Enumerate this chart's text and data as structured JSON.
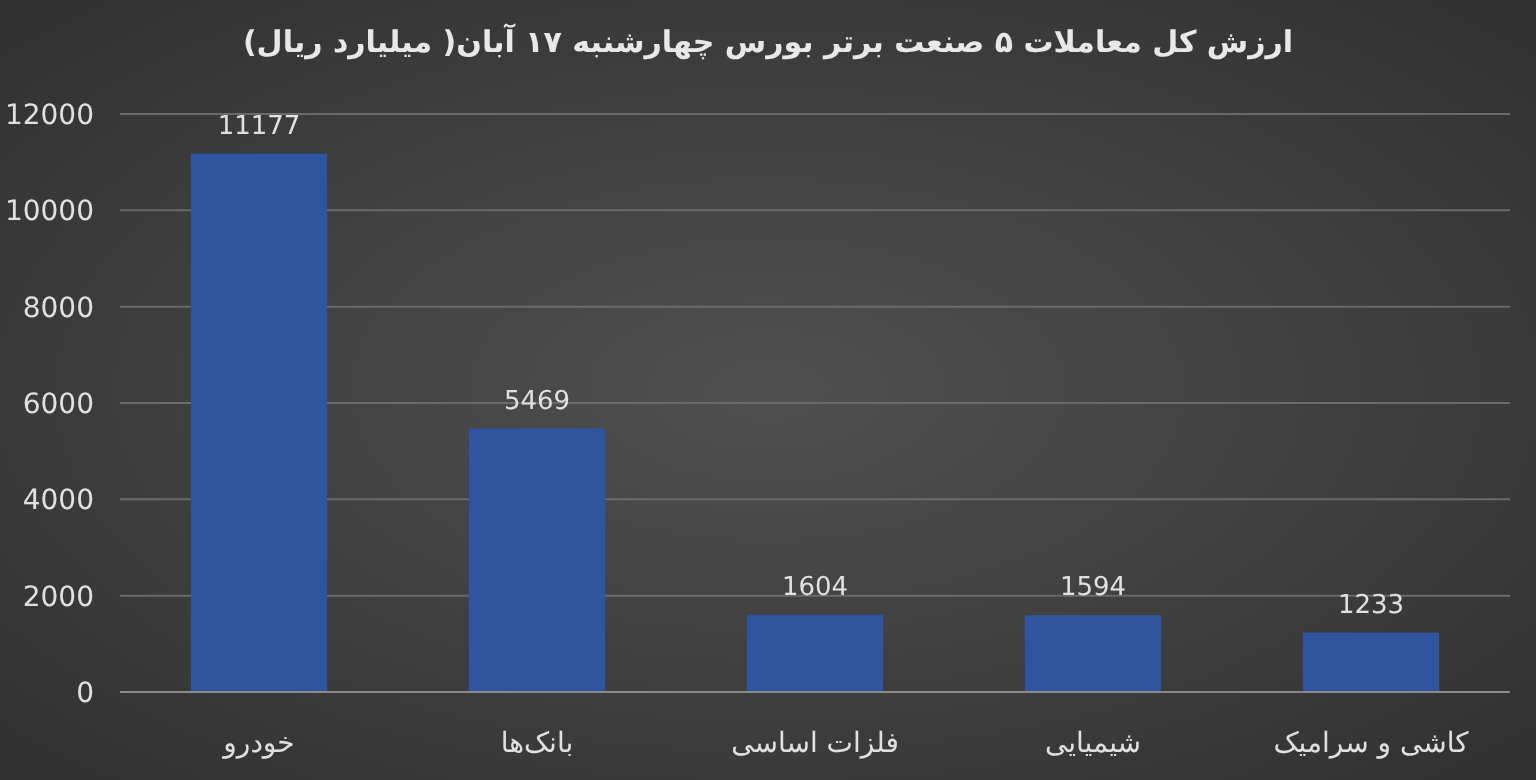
{
  "chart_data": {
    "type": "bar",
    "title": "ارزش کل معاملات ۵ صنعت برتر بورس چهارشنبه ۱۷ آبان( میلیارد ریال)",
    "categories": [
      "خودرو",
      "بانک‌ها",
      "فلزات اساسی",
      "شیمیایی",
      "کاشی و سرامیک"
    ],
    "values": [
      11177,
      5469,
      1604,
      1594,
      1233
    ],
    "color": "#2f55a0",
    "ylim": [
      0,
      12000
    ],
    "yticks": [
      0,
      2000,
      4000,
      6000,
      8000,
      10000,
      12000
    ],
    "grid": "y",
    "data_labels": true
  }
}
